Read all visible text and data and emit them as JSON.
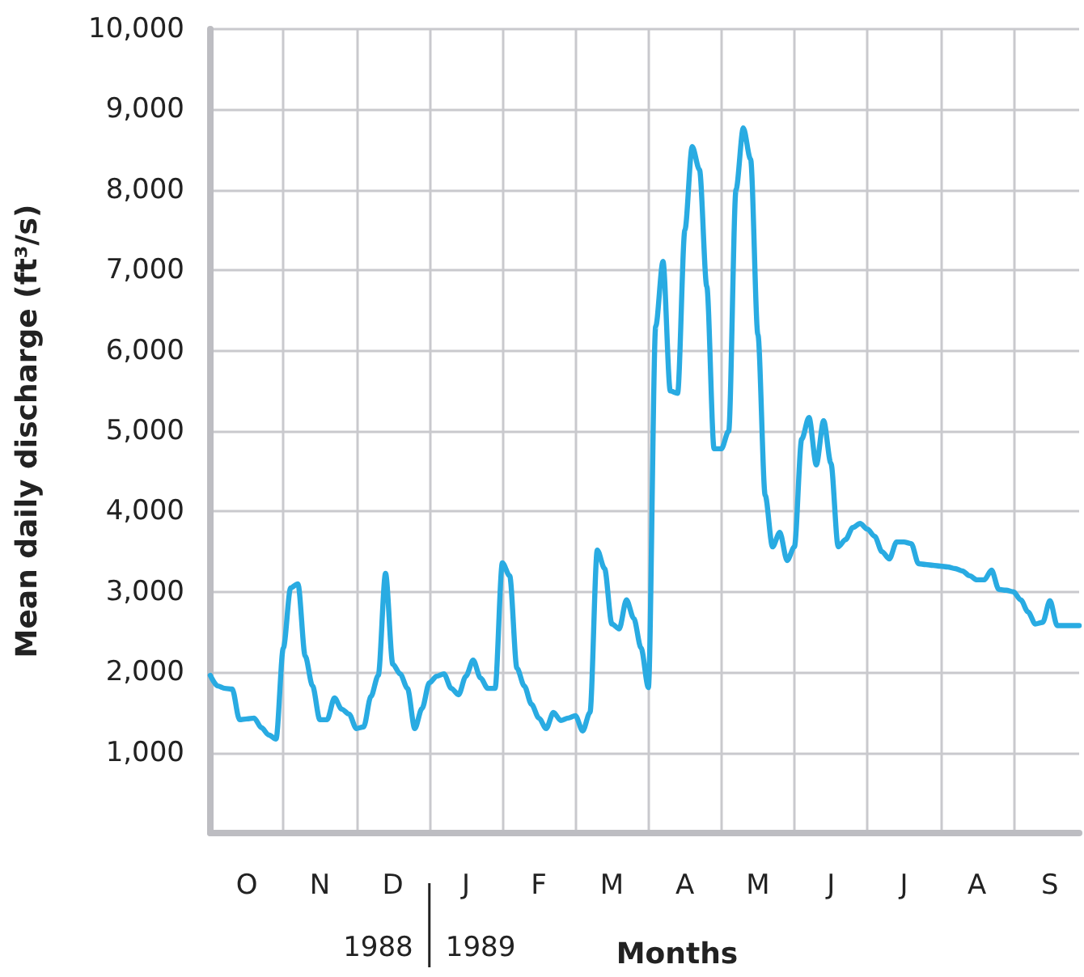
{
  "chart_data": {
    "type": "line",
    "xlabel": "Months",
    "ylabel": "Mean daily discharge (ft³/s)",
    "annotations": [
      "1988",
      "1989"
    ],
    "color": "#29abe2",
    "grid": true,
    "marker": "none",
    "line_style": "solid",
    "categories": [
      null,
      null,
      null,
      null,
      null,
      "O",
      null,
      null,
      null,
      null,
      null,
      null,
      null,
      null,
      null,
      "N",
      null,
      null,
      null,
      null,
      null,
      null,
      null,
      null,
      null,
      "D",
      null,
      null,
      null,
      null,
      null,
      null,
      null,
      null,
      null,
      "J",
      null,
      null,
      null,
      null,
      null,
      null,
      null,
      null,
      null,
      "F",
      null,
      null,
      null,
      null,
      null,
      null,
      null,
      null,
      null,
      "M",
      null,
      null,
      null,
      null,
      null,
      null,
      null,
      null,
      null,
      "A",
      null,
      null,
      null,
      null,
      null,
      null,
      null,
      null,
      null,
      "M",
      null,
      null,
      null,
      null,
      null,
      null,
      null,
      null,
      null,
      "J",
      null,
      null,
      null,
      null,
      null,
      null,
      null,
      null,
      null,
      "J",
      null,
      null,
      null,
      null,
      null,
      null,
      null,
      null,
      null,
      "A",
      null,
      null,
      null,
      null,
      null,
      null,
      null,
      null,
      null,
      "S",
      null,
      null,
      null,
      null
    ],
    "ylim": [
      0,
      10000
    ],
    "yticks": [
      {
        "value": 0,
        "label": null
      },
      {
        "value": 1000,
        "label": "1,000"
      },
      {
        "value": 2000,
        "label": "2,000"
      },
      {
        "value": 3000,
        "label": "3,000"
      },
      {
        "value": 4000,
        "label": "4,000"
      },
      {
        "value": 5000,
        "label": "5,000"
      },
      {
        "value": 6000,
        "label": "6,000"
      },
      {
        "value": 7000,
        "label": "7,000"
      },
      {
        "value": 8000,
        "label": "8,000"
      },
      {
        "value": 9000,
        "label": "9,000"
      },
      {
        "value": 10000,
        "label": "10,000"
      }
    ],
    "values": [
      1960,
      1830,
      1800,
      1790,
      1410,
      1420,
      1430,
      1310,
      1220,
      1170,
      2300,
      3050,
      3100,
      2200,
      1830,
      1410,
      1410,
      1680,
      1540,
      1480,
      1300,
      1320,
      1700,
      1960,
      3230,
      2100,
      1980,
      1800,
      1300,
      1550,
      1870,
      1950,
      1980,
      1800,
      1720,
      1950,
      2150,
      1930,
      1800,
      1800,
      3360,
      3200,
      2050,
      1830,
      1600,
      1430,
      1300,
      1500,
      1400,
      1430,
      1460,
      1270,
      1500,
      3520,
      3290,
      2600,
      2540,
      2900,
      2670,
      2300,
      1810,
      6300,
      7110,
      5500,
      5470,
      7500,
      8540,
      8250,
      6800,
      4780,
      4780,
      5000,
      8000,
      8770,
      8380,
      6200,
      4200,
      3560,
      3740,
      3390,
      3560,
      4900,
      5170,
      4580,
      5130,
      4600,
      3560,
      3650,
      3800,
      3850,
      3780,
      3690,
      3500,
      3410,
      3620,
      3620,
      3600,
      3350,
      3340,
      3330,
      3320,
      3310,
      3290,
      3260,
      3200,
      3150,
      3150,
      3270,
      3030,
      3020,
      3000,
      2900,
      2750,
      2600,
      2620,
      2890,
      2580,
      2580,
      2580,
      2580
    ]
  }
}
